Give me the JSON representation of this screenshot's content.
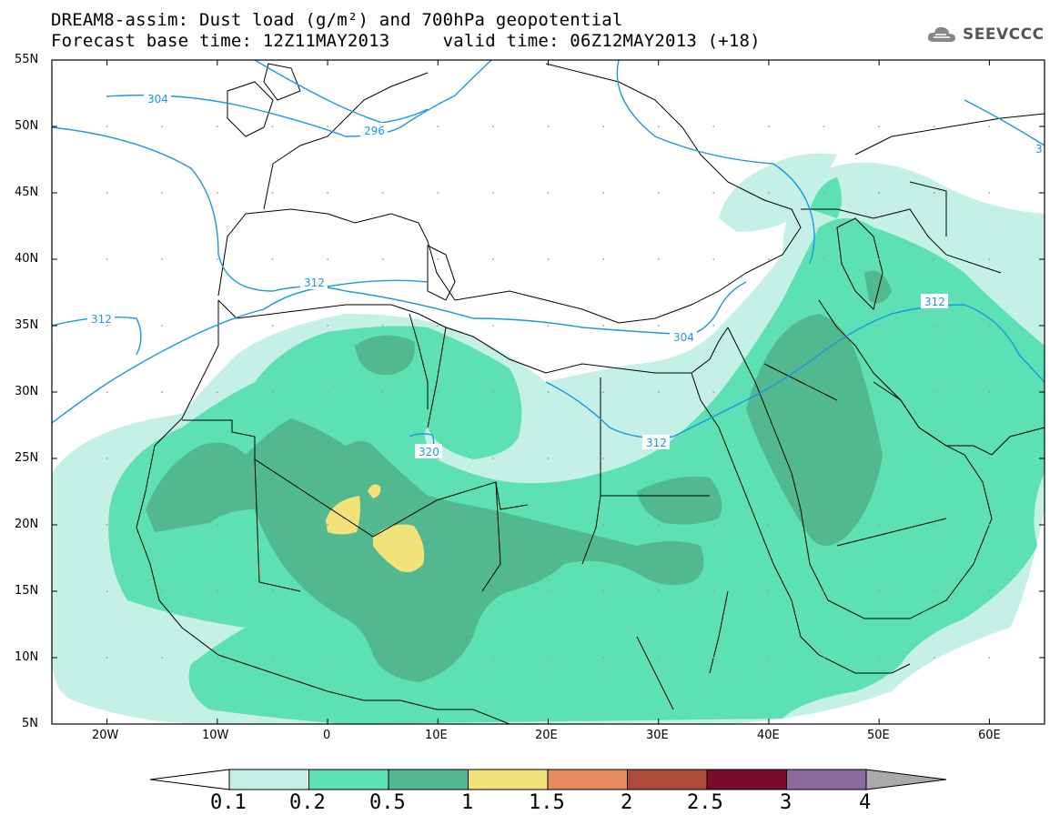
{
  "title": {
    "line1": "DREAM8-assim: Dust load (g/m²) and 700hPa geopotential",
    "line2": "Forecast base time: 12Z11MAY2013     valid time: 06Z12MAY2013 (+18)"
  },
  "logo": {
    "text": "SEEVCCC",
    "icon": "cloud-icon"
  },
  "axes": {
    "lat_ticks": [
      "55N",
      "50N",
      "45N",
      "40N",
      "35N",
      "30N",
      "25N",
      "20N",
      "15N",
      "10N",
      "5N"
    ],
    "lon_ticks": [
      "20W",
      "10W",
      "0",
      "10E",
      "20E",
      "30E",
      "40E",
      "50E",
      "60E"
    ],
    "lon_range": [
      -25,
      65
    ],
    "lat_range": [
      5,
      55
    ]
  },
  "contour_labels": [
    "304",
    "296",
    "312",
    "312",
    "304",
    "320",
    "312",
    "312",
    "3"
  ],
  "colorbar": {
    "levels": [
      "0.1",
      "0.2",
      "0.5",
      "1",
      "1.5",
      "2",
      "2.5",
      "3",
      "4"
    ],
    "colors": [
      "#c4f0e6",
      "#5ce0b4",
      "#52b890",
      "#f2e27a",
      "#e88a60",
      "#ad4a3a",
      "#7a0a2a",
      "#8c6aa0"
    ],
    "under_color": "#ffffff",
    "over_color": "#aaaaaa"
  },
  "legend_colors": {
    "coast": "#000000",
    "geopotential": "#1e96e6"
  }
}
